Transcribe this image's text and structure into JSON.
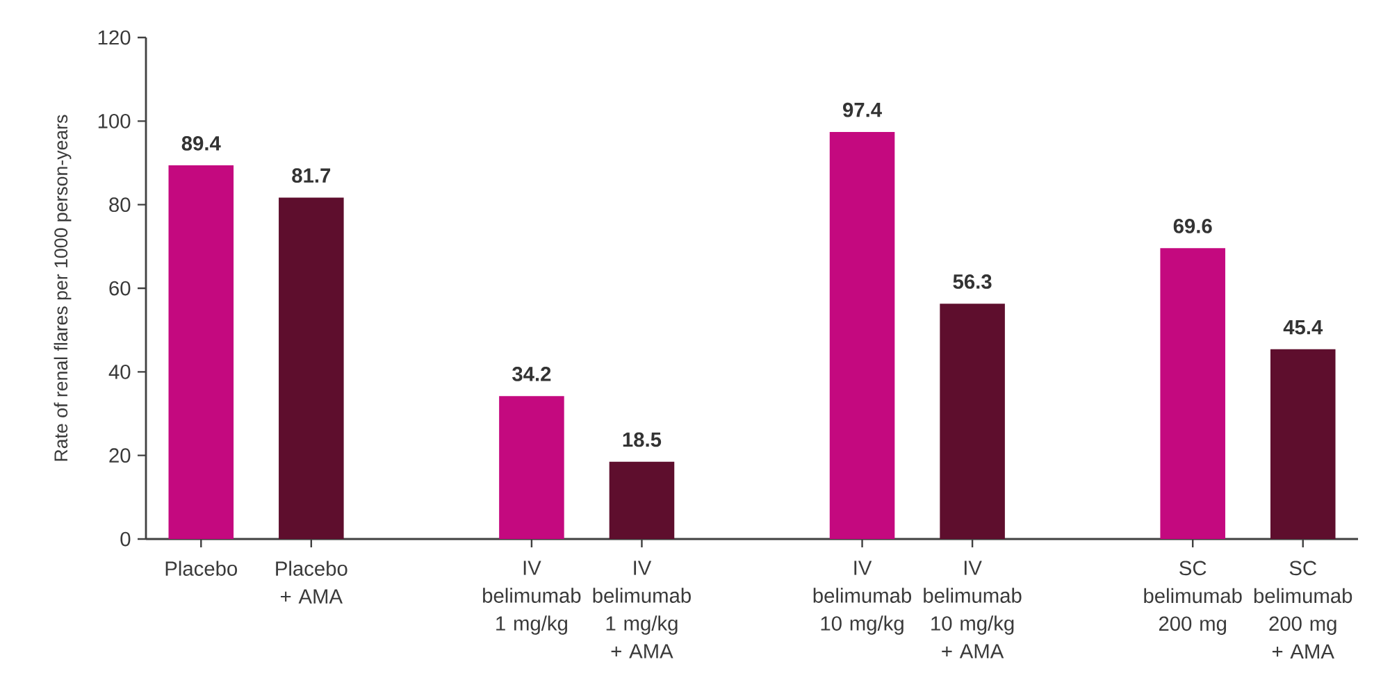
{
  "chart_data": {
    "type": "bar",
    "ylabel": "Rate of renal flares per 1000 person-years",
    "categories": [
      "Placebo",
      "Placebo + AMA",
      null,
      "IV belimumab 1 mg/kg",
      "IV belimumab 1 mg/kg + AMA",
      null,
      "IV belimumab 10 mg/kg",
      "IV belimumab 10 mg/kg + AMA",
      null,
      "SC belimumab 200 mg",
      "SC belimumab 200 mg + AMA"
    ],
    "values": [
      89.4,
      81.7,
      null,
      34.2,
      18.5,
      null,
      97.4,
      56.3,
      null,
      69.6,
      45.4
    ],
    "colors": [
      "#c4097f",
      "#5e0e2d",
      null,
      "#c4097f",
      "#5e0e2d",
      null,
      "#c4097f",
      "#5e0e2d",
      null,
      "#c4097f",
      "#5e0e2d"
    ],
    "ylim": [
      0,
      120
    ],
    "yticks": [
      0,
      20,
      40,
      60,
      80,
      100,
      120
    ],
    "data_labels": true
  }
}
